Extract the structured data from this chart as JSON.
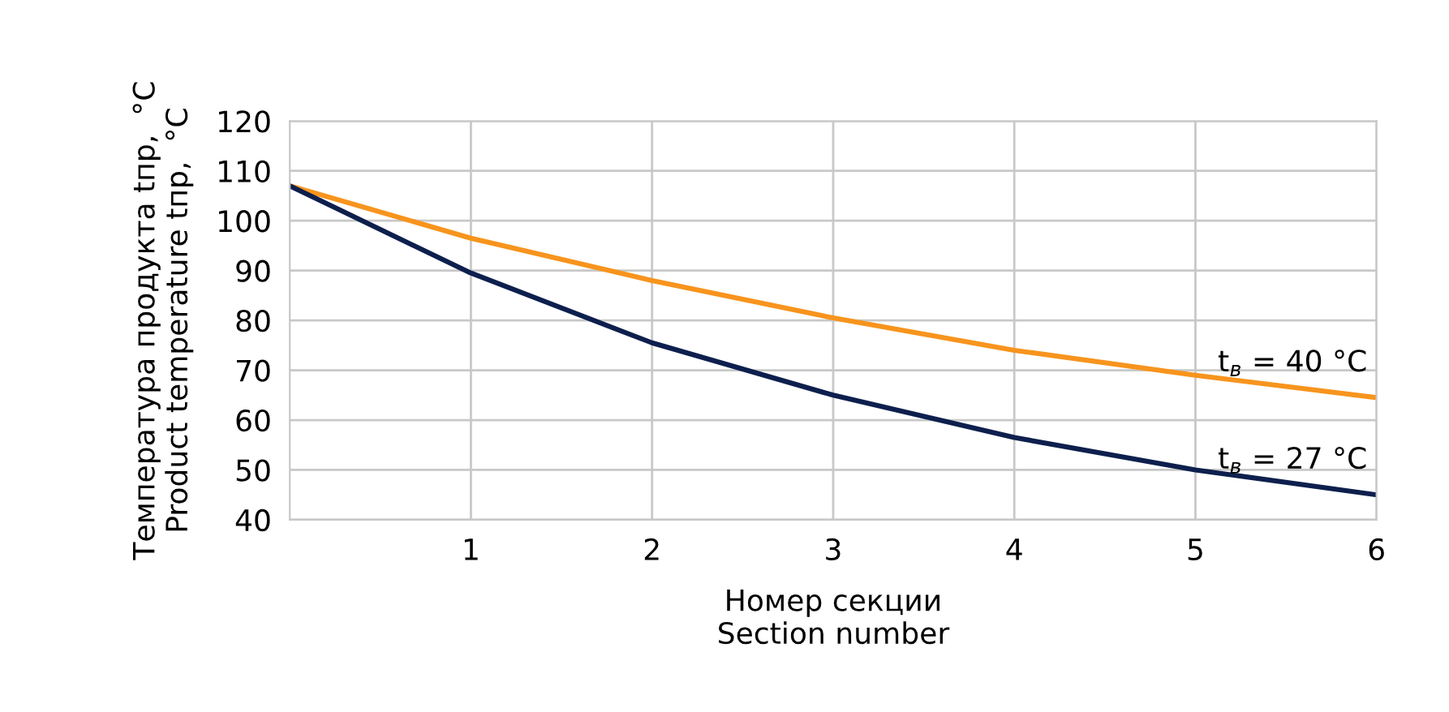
{
  "chart_data": {
    "type": "line",
    "xlabel": "Номер секции\nSection number",
    "ylabel": "Температура продукта tпр,  °C\nProduct temperature tпр,  °C",
    "x": [
      0,
      1,
      2,
      3,
      4,
      5,
      6
    ],
    "series": [
      {
        "name": "t$_{в}$ = 40 °C",
        "color": "#f7941d",
        "values": [
          107,
          96.5,
          88,
          80.5,
          74,
          69,
          64.5
        ]
      },
      {
        "name": "t$_{в}$ = 27 °C",
        "color": "#0d1f4d",
        "values": [
          107,
          89.5,
          75.5,
          65,
          56.5,
          50,
          45
        ]
      }
    ],
    "xlim": [
      0,
      6
    ],
    "xticks": [
      1,
      2,
      3,
      4,
      5,
      6
    ],
    "ylim": [
      40,
      120
    ],
    "yticks": [
      40,
      50,
      60,
      70,
      80,
      90,
      100,
      110,
      120
    ],
    "grid": true,
    "legend": false,
    "marker": "none",
    "line_style": "solid"
  }
}
